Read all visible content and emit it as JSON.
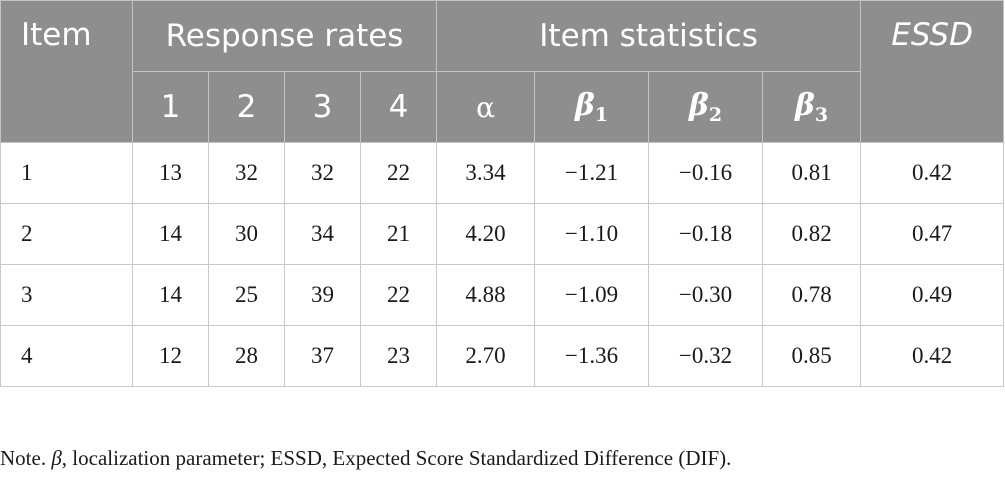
{
  "header": {
    "item": "Item",
    "response_rates": "Response rates",
    "item_statistics": "Item statistics",
    "essd": "ESSD",
    "response_levels": [
      "1",
      "2",
      "3",
      "4"
    ],
    "alpha": "α",
    "beta_symbol": "β",
    "beta_subscripts": [
      "1",
      "2",
      "3"
    ]
  },
  "rows": [
    {
      "item": "1",
      "rates": [
        "13",
        "32",
        "32",
        "22"
      ],
      "alpha": "3.34",
      "betas": [
        "−1.21",
        "−0.16",
        "0.81"
      ],
      "essd": "0.42"
    },
    {
      "item": "2",
      "rates": [
        "14",
        "30",
        "34",
        "21"
      ],
      "alpha": "4.20",
      "betas": [
        "−1.10",
        "−0.18",
        "0.82"
      ],
      "essd": "0.47"
    },
    {
      "item": "3",
      "rates": [
        "14",
        "25",
        "39",
        "22"
      ],
      "alpha": "4.88",
      "betas": [
        "−1.09",
        "−0.30",
        "0.78"
      ],
      "essd": "0.49"
    },
    {
      "item": "4",
      "rates": [
        "12",
        "28",
        "37",
        "23"
      ],
      "alpha": "2.70",
      "betas": [
        "−1.36",
        "−0.32",
        "0.85"
      ],
      "essd": "0.42"
    }
  ],
  "note": {
    "prefix": "Note. ",
    "symbol": "β",
    "text": ", localization parameter; ESSD, Expected Score Standardized Difference (DIF)."
  }
}
